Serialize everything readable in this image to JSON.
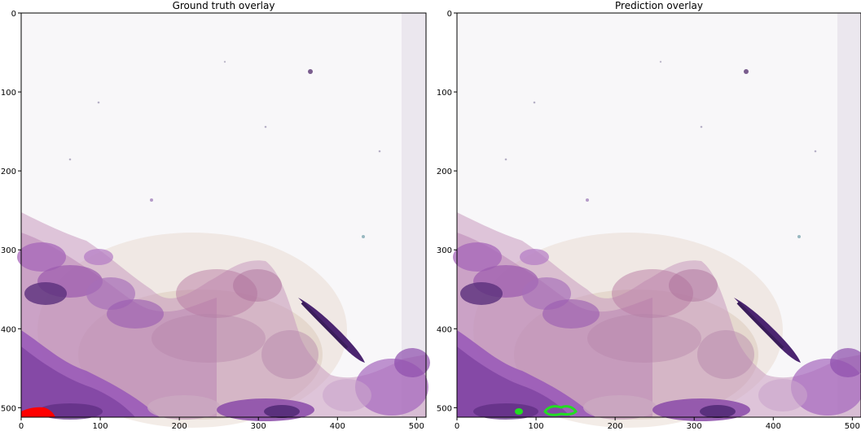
{
  "panels": [
    {
      "title": "Ground truth overlay",
      "xticks": [
        "0",
        "100",
        "200",
        "300",
        "400",
        "500"
      ],
      "yticks": [
        "0",
        "100",
        "200",
        "300",
        "400",
        "500"
      ],
      "overlay": {
        "label_color": "#ff0000"
      }
    },
    {
      "title": "Prediction overlay",
      "xticks": [
        "0",
        "100",
        "200",
        "300",
        "400",
        "500"
      ],
      "yticks": [
        "0",
        "100",
        "200",
        "300",
        "400",
        "500"
      ],
      "overlay": {
        "label_color": "#22dd22"
      }
    }
  ],
  "colors": {
    "background_tissue": "#f7f6f8",
    "stain_purple": "#9c5bb8",
    "stain_pink": "#b06a98",
    "stain_dark": "#4a2566",
    "gt_overlay": "#ff0000",
    "pred_overlay": "#22dd22"
  }
}
